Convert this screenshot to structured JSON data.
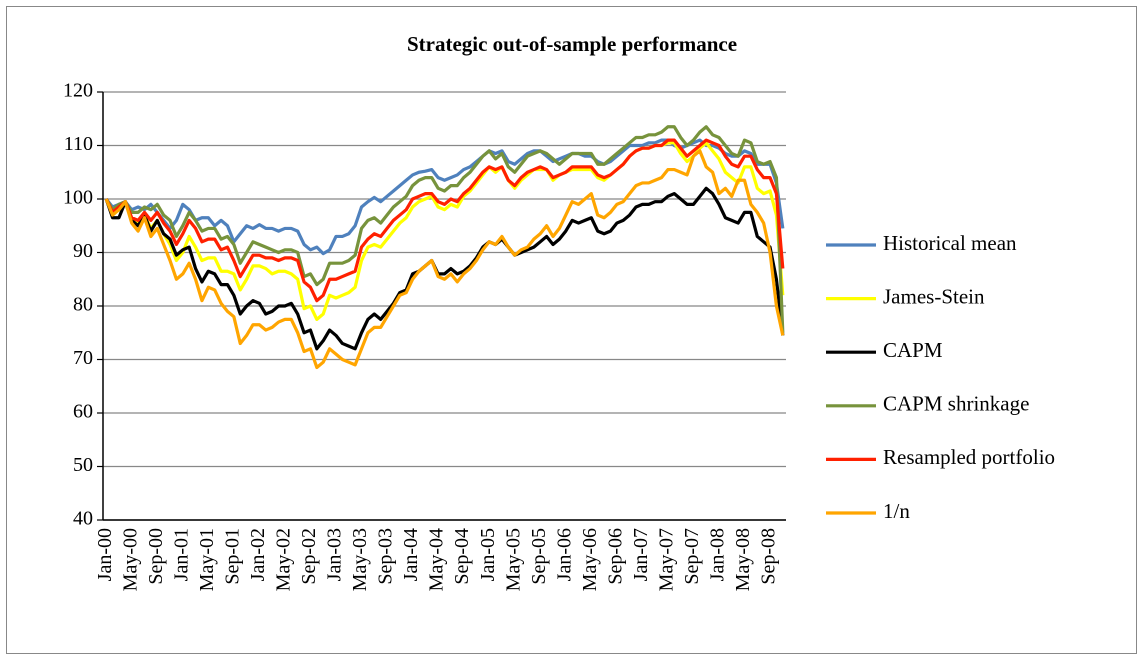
{
  "chart_data": {
    "type": "line",
    "title": "Strategic out-of-sample performance",
    "categories": [
      "Jan-00",
      null,
      null,
      null,
      "May-00",
      null,
      null,
      null,
      "Sep-00",
      null,
      null,
      null,
      "Jan-01",
      null,
      null,
      null,
      "May-01",
      null,
      null,
      null,
      "Sep-01",
      null,
      null,
      null,
      "Jan-02",
      null,
      null,
      null,
      "May-02",
      null,
      null,
      null,
      "Sep-02",
      null,
      null,
      null,
      "Jan-03",
      null,
      null,
      null,
      "May-03",
      null,
      null,
      null,
      "Sep-03",
      null,
      null,
      null,
      "Jan-04",
      null,
      null,
      null,
      "May-04",
      null,
      null,
      null,
      "Sep-04",
      null,
      null,
      null,
      "Jan-05",
      null,
      null,
      null,
      "May-05",
      null,
      null,
      null,
      "Sep-05",
      null,
      null,
      null,
      "Jan-06",
      null,
      null,
      null,
      "May-06",
      null,
      null,
      null,
      "Sep-06",
      null,
      null,
      null,
      "Jan-07",
      null,
      null,
      null,
      "May-07",
      null,
      null,
      null,
      "Sep-07",
      null,
      null,
      null,
      "Jan-08",
      null,
      null,
      null,
      "May-08",
      null,
      null,
      null,
      "Sep-08",
      null,
      null
    ],
    "series": [
      {
        "name": "Historical mean",
        "color": "#4f81bd",
        "values": [
          100,
          98.5,
          99,
          99.5,
          98,
          98.5,
          98,
          99,
          97.5,
          96,
          94.5,
          96,
          99,
          98,
          96,
          96.5,
          96.5,
          95,
          96,
          95,
          92,
          93.5,
          95,
          94.5,
          95.2,
          94.5,
          94.5,
          94,
          94.5,
          94.5,
          94,
          91.5,
          90.5,
          91,
          89.8,
          90.5,
          93,
          93,
          93.5,
          95,
          98.5,
          99.5,
          100.3,
          99.5,
          100.5,
          101.5,
          102.5,
          103.5,
          104.5,
          105,
          105.2,
          105.5,
          104,
          103.5,
          104,
          104.5,
          105.5,
          106,
          107,
          108,
          109,
          108.5,
          109,
          107,
          106.5,
          107.5,
          108.5,
          109,
          109,
          108,
          107,
          107.5,
          108,
          108.5,
          108.5,
          108,
          108,
          107,
          106.5,
          107,
          108,
          109,
          110,
          110,
          110,
          110.5,
          110.5,
          111,
          111,
          110,
          109.5,
          110,
          110.5,
          111,
          110,
          110,
          109.5,
          108.5,
          108,
          108,
          109,
          108.5,
          106.5,
          106.5,
          106.5,
          103,
          94.5
        ]
      },
      {
        "name": "James-Stein",
        "color": "#ffff00",
        "values": [
          100,
          97,
          98,
          99.5,
          96,
          95.5,
          97,
          94.5,
          96,
          93.5,
          91.5,
          88.5,
          90,
          93,
          91,
          88.5,
          89,
          89,
          86.5,
          86.5,
          86,
          83,
          85,
          87.5,
          87.5,
          87,
          86,
          86.5,
          86.5,
          86,
          85,
          79.5,
          80,
          77.5,
          78.5,
          82,
          81.5,
          82,
          82.5,
          83.5,
          88.5,
          91,
          91.5,
          91,
          92.5,
          94,
          95.5,
          96.5,
          98.5,
          99.5,
          100,
          100.5,
          98.5,
          98,
          99,
          98.5,
          100.5,
          101.5,
          103,
          104.5,
          106,
          105,
          106,
          103.5,
          102,
          103.5,
          104.5,
          105.5,
          105.5,
          105.5,
          103.5,
          104.5,
          105,
          105.5,
          105.5,
          105.5,
          105.5,
          104,
          103.5,
          104.5,
          105.5,
          106.5,
          108,
          109,
          109.5,
          109.5,
          110,
          110,
          110.5,
          110.5,
          108.5,
          107,
          108,
          109.5,
          110.5,
          109,
          107.5,
          105,
          104,
          103,
          106,
          106,
          102,
          101,
          101.5,
          97,
          82
        ]
      },
      {
        "name": "CAPM",
        "color": "#000000",
        "values": [
          100,
          96.5,
          96.5,
          99.5,
          96,
          95,
          97,
          94,
          96,
          93.5,
          92.5,
          89.5,
          90.5,
          91,
          87,
          84.5,
          86.5,
          86,
          84,
          84,
          82,
          78.5,
          80,
          81,
          80.5,
          78.5,
          79,
          80,
          80,
          80.5,
          78.5,
          75,
          75.5,
          72,
          73.5,
          75.5,
          74.5,
          73,
          72.5,
          72,
          75,
          77.5,
          78.5,
          77.5,
          79,
          80.5,
          82.5,
          83,
          86,
          86.5,
          87.5,
          88.5,
          86,
          86,
          87,
          86,
          86.5,
          87.5,
          89,
          91,
          92,
          91.5,
          92.5,
          91,
          89.5,
          90,
          90.5,
          91,
          92,
          93,
          91.5,
          92.5,
          94,
          96,
          95.5,
          96,
          96.5,
          94,
          93.5,
          94,
          95.5,
          96,
          97,
          98.5,
          99,
          99,
          99.5,
          99.5,
          100.5,
          101,
          100,
          99,
          99,
          100.5,
          102,
          101,
          99,
          96.5,
          96,
          95.5,
          97.5,
          97.5,
          93,
          92,
          91,
          85,
          74.5
        ]
      },
      {
        "name": "CAPM shrinkage",
        "color": "#77933c",
        "values": [
          100,
          98,
          99,
          99.5,
          97.5,
          97.5,
          98.5,
          98,
          99,
          97,
          96,
          93,
          95,
          97.5,
          96,
          94,
          94.5,
          94.5,
          92.5,
          93,
          91.5,
          88,
          90,
          92,
          91.5,
          91,
          90.5,
          90,
          90.5,
          90.5,
          90,
          85.5,
          86,
          84,
          85,
          88,
          88,
          88,
          88.5,
          89.5,
          94.5,
          96,
          96.5,
          95.5,
          97,
          98.5,
          99.5,
          100.5,
          102.5,
          103.5,
          104,
          104,
          102,
          101.5,
          102.5,
          102.5,
          104,
          105,
          106.5,
          108,
          109,
          107.5,
          108.5,
          106,
          105,
          106.5,
          108,
          108.5,
          109,
          108.5,
          107.5,
          106.5,
          107.5,
          108.5,
          108.5,
          108.5,
          108.5,
          106.5,
          106.5,
          107.5,
          108.5,
          109.5,
          110.5,
          111.5,
          111.5,
          112,
          112,
          112.5,
          113.5,
          113.5,
          111.5,
          110,
          111,
          112.5,
          113.5,
          112,
          111.5,
          110,
          108.5,
          108,
          111,
          110.5,
          107,
          106.5,
          107,
          104,
          75
        ]
      },
      {
        "name": "Resampled portfolio",
        "color": "#ff2000",
        "values": [
          100,
          97.5,
          98.5,
          99.5,
          96.5,
          96,
          97.5,
          96,
          97.5,
          95.5,
          94,
          91.5,
          93.5,
          96,
          94.5,
          92,
          92.5,
          92.5,
          90.5,
          91,
          88.5,
          85.5,
          87.5,
          89.5,
          89.5,
          89,
          89,
          88.5,
          89,
          89,
          88.5,
          84.5,
          83.5,
          81,
          82,
          85,
          85,
          85.5,
          86,
          86.5,
          91,
          92.5,
          93.5,
          93,
          94.5,
          96,
          97,
          98,
          100,
          100.5,
          101,
          101,
          99.5,
          99,
          100,
          99.5,
          101,
          102,
          103.5,
          105,
          106,
          105.5,
          106,
          103.5,
          102.5,
          104,
          105,
          105.5,
          106,
          105.5,
          104,
          104.5,
          105,
          106,
          106,
          106,
          106,
          104.5,
          104,
          104.5,
          105.5,
          106.5,
          108,
          109,
          109.5,
          109.5,
          110,
          110,
          111,
          111,
          109.5,
          108,
          109,
          110,
          111,
          110.5,
          110,
          108,
          106.5,
          106,
          108,
          108,
          105.5,
          104,
          104,
          101,
          87
        ]
      },
      {
        "name": "1/n",
        "color": "#ffa500",
        "values": [
          100,
          97,
          98,
          99.5,
          95.5,
          94,
          96.5,
          93,
          94.5,
          91.5,
          88.5,
          85,
          86,
          88,
          85,
          81,
          83.5,
          83,
          80.5,
          79,
          78,
          73,
          74.5,
          76.5,
          76.5,
          75.5,
          76,
          77,
          77.5,
          77.5,
          75,
          71.5,
          72,
          68.5,
          69.5,
          72,
          71,
          70,
          69.5,
          69,
          72,
          75,
          76,
          76,
          78,
          80,
          82,
          82.5,
          85,
          86.5,
          87.5,
          88.5,
          85.5,
          85,
          86,
          84.5,
          86,
          87,
          88.5,
          90.5,
          92,
          91.5,
          93,
          91,
          89.5,
          90.5,
          91,
          92.5,
          93.5,
          95,
          93,
          94.5,
          97,
          99.5,
          99,
          100,
          101,
          97,
          96.5,
          97.5,
          99,
          99.5,
          101,
          102.5,
          103,
          103,
          103.5,
          104,
          105.5,
          105.5,
          105,
          104.5,
          108,
          109,
          106,
          105,
          101,
          102,
          100.5,
          103.5,
          103.5,
          99,
          97.5,
          95.5,
          90,
          80,
          74.5
        ]
      }
    ],
    "ylim": [
      40,
      120
    ],
    "yticks": [
      40,
      50,
      60,
      70,
      80,
      90,
      100,
      110,
      120
    ],
    "grid": true,
    "legend": "right"
  }
}
